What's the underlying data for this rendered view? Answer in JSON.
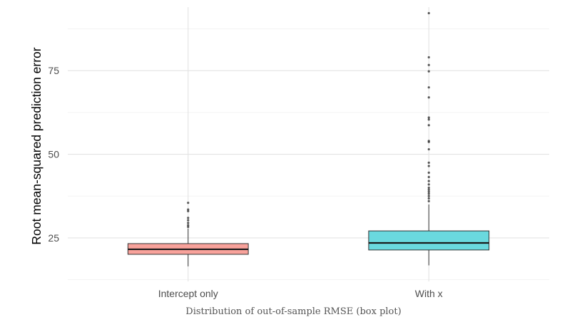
{
  "caption": "Distribution of out-of-sample RMSE (box plot)",
  "chart_data": {
    "type": "box",
    "title": "",
    "xlabel": "",
    "ylabel": "Root mean-squared prediction error",
    "ylim": [
      12,
      94
    ],
    "yticks": [
      25,
      50,
      75
    ],
    "grid": true,
    "legend": "none",
    "categories": [
      "Intercept only",
      "With x"
    ],
    "series": [
      {
        "category": "Intercept only",
        "color": "#f8a29b",
        "min": 16.5,
        "q1": 20.1,
        "median": 21.6,
        "q3": 23.3,
        "whisker_high": 27.8,
        "outliers": [
          28.3,
          28.8,
          29.5,
          30.3,
          31.0,
          33.0,
          33.5,
          35.5
        ]
      },
      {
        "category": "With x",
        "color": "#6ad9de",
        "min": 16.8,
        "q1": 21.4,
        "median": 23.5,
        "q3": 27.1,
        "whisker_high": 35.0,
        "outliers": [
          36.0,
          36.8,
          37.5,
          38.2,
          38.8,
          39.4,
          40.0,
          41.0,
          42.0,
          43.2,
          44.5,
          46.5,
          47.5,
          51.5,
          53.7,
          54.0,
          58.7,
          60.4,
          61.0,
          67.0,
          70.0,
          74.8,
          76.7,
          79.0,
          92.2
        ]
      }
    ]
  }
}
